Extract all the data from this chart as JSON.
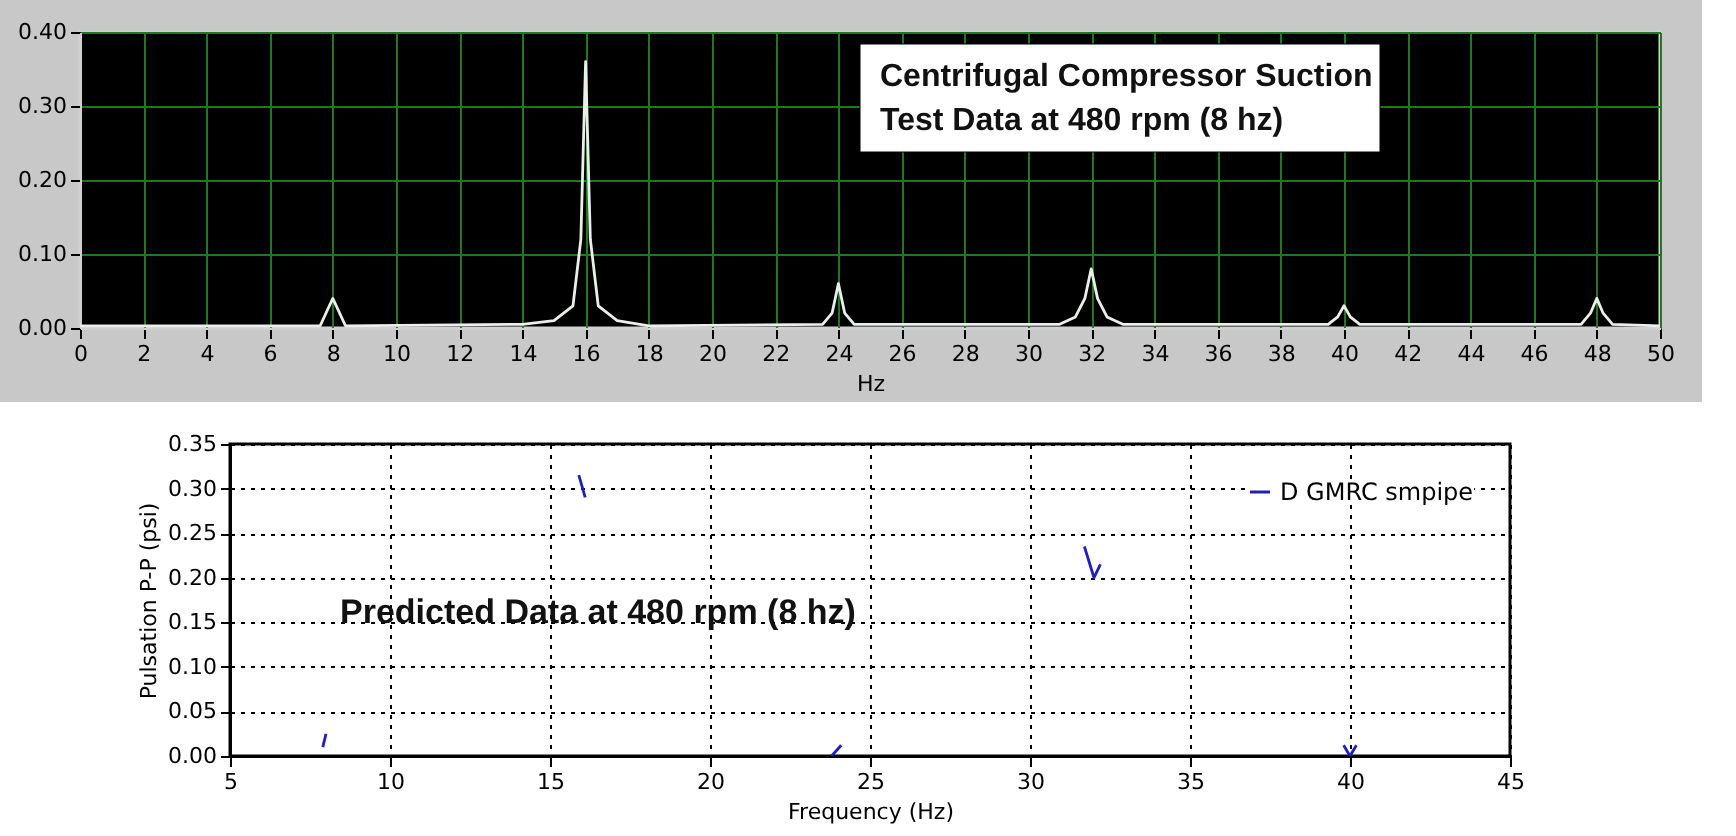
{
  "chart_data": [
    {
      "type": "line",
      "xlabel": "Hz",
      "annotations": [
        "Centrifugal Compressor Suction",
        "Test Data at 480 rpm (8 hz)"
      ],
      "grid": true,
      "xlim": [
        0,
        50
      ],
      "xticks": [
        0,
        2,
        4,
        6,
        8,
        10,
        12,
        14,
        16,
        18,
        20,
        22,
        24,
        26,
        28,
        30,
        32,
        34,
        36,
        38,
        40,
        42,
        44,
        46,
        48,
        50
      ],
      "ylim": [
        0,
        0.4
      ],
      "yticks": [
        {
          "value": 0,
          "label": "0.00"
        },
        {
          "value": 0.1,
          "label": "0.10"
        },
        {
          "value": 0.2,
          "label": "0.20"
        },
        {
          "value": 0.3,
          "label": "0.30"
        },
        {
          "value": 0.4,
          "label": "0.40"
        }
      ],
      "x": [
        0,
        7.6,
        8,
        8.4,
        14,
        15,
        15.6,
        15.85,
        16,
        16.15,
        16.4,
        17,
        18,
        23.5,
        23.8,
        24,
        24.2,
        24.5,
        31,
        31.5,
        31.8,
        32,
        32.2,
        32.5,
        33,
        39.5,
        39.8,
        40,
        40.2,
        40.5,
        47.5,
        47.8,
        48,
        48.2,
        48.5,
        50
      ],
      "series": [
        {
          "color": "#e8f0e8",
          "values": [
            0.003,
            0.003,
            0.04,
            0.003,
            0.005,
            0.01,
            0.03,
            0.12,
            0.36,
            0.12,
            0.03,
            0.01,
            0.003,
            0.005,
            0.02,
            0.06,
            0.02,
            0.005,
            0.005,
            0.015,
            0.04,
            0.08,
            0.04,
            0.015,
            0.005,
            0.005,
            0.015,
            0.03,
            0.015,
            0.005,
            0.005,
            0.02,
            0.04,
            0.02,
            0.005,
            0.003
          ]
        }
      ]
    },
    {
      "type": "line",
      "xlabel": "Frequency (Hz)",
      "ylabel": "Pulsation P-P (psi)",
      "annotations": [
        "Predicted Data at 480 rpm (8 hz)"
      ],
      "grid": true,
      "line_style": "solid",
      "legend": "top right",
      "xlim": [
        5,
        45
      ],
      "xticks": [
        5,
        10,
        15,
        20,
        25,
        30,
        35,
        40,
        45
      ],
      "ylim": [
        0,
        0.35
      ],
      "yticks": [
        {
          "value": 0,
          "label": "0.00"
        },
        {
          "value": 0.05,
          "label": "0.05"
        },
        {
          "value": 0.1,
          "label": "0.10"
        },
        {
          "value": 0.15,
          "label": "0.15"
        },
        {
          "value": 0.2,
          "label": "0.20"
        },
        {
          "value": 0.25,
          "label": "0.25"
        },
        {
          "value": 0.3,
          "label": "0.30"
        },
        {
          "value": 0.35,
          "label": "0.35"
        }
      ],
      "series": [
        {
          "name": "D GMRC smpipe",
          "color": "#1f1fbf",
          "x": [
            7.9,
            8.0
          ],
          "values": [
            0.01,
            0.025
          ]
        },
        {
          "color": "#1f1fbf",
          "x": [
            15.9,
            16.1
          ],
          "values": [
            0.315,
            0.29
          ]
        },
        {
          "color": "#1f1fbf",
          "x": [
            23.8,
            24.1
          ],
          "values": [
            0.0,
            0.012
          ]
        },
        {
          "color": "#1f1fbf",
          "x": [
            31.7,
            32.0,
            32.2
          ],
          "values": [
            0.235,
            0.2,
            0.215
          ]
        },
        {
          "color": "#1f1fbf",
          "x": [
            39.8,
            40.0,
            40.2
          ],
          "values": [
            0.012,
            0.0,
            0.012
          ]
        }
      ]
    }
  ]
}
